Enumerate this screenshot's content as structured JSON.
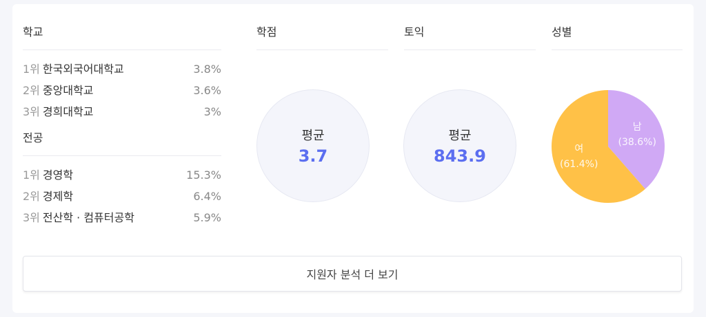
{
  "school": {
    "title": "학교",
    "items": [
      {
        "rank": "1위",
        "name": "한국외국어대학교",
        "pct": "3.8%"
      },
      {
        "rank": "2위",
        "name": "중앙대학교",
        "pct": "3.6%"
      },
      {
        "rank": "3위",
        "name": "경희대학교",
        "pct": "3%"
      }
    ]
  },
  "major": {
    "title": "전공",
    "items": [
      {
        "rank": "1위",
        "name": "경영학",
        "pct": "15.3%"
      },
      {
        "rank": "2위",
        "name": "경제학",
        "pct": "6.4%"
      },
      {
        "rank": "3위",
        "name": "전산학 · 컴퓨터공학",
        "pct": "5.9%"
      }
    ]
  },
  "gpa": {
    "title": "학점",
    "label": "평균",
    "value": "3.7"
  },
  "toeic": {
    "title": "토익",
    "label": "평균",
    "value": "843.9"
  },
  "gender": {
    "title": "성별"
  },
  "chart_data": {
    "type": "pie",
    "slices": [
      {
        "name": "남",
        "value": 38.6,
        "label": "(38.6%)",
        "color": "#d0a9f5"
      },
      {
        "name": "여",
        "value": 61.4,
        "label": "(61.4%)",
        "color": "#ffc147"
      }
    ]
  },
  "more_button": "지원자 분석 더 보기"
}
